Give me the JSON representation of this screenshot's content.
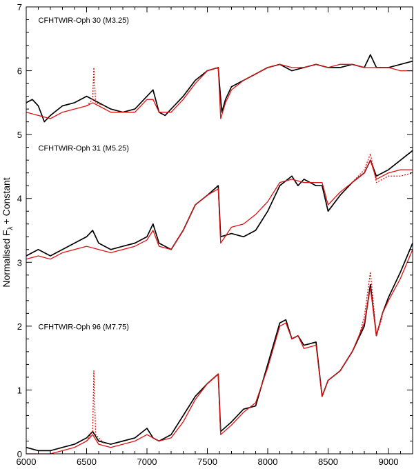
{
  "chart_data": {
    "type": "line",
    "title": "",
    "xlabel": "",
    "ylabel": {
      "main": "Normalised F",
      "sub": "λ",
      "suffix": "+ Constant"
    },
    "xlim": [
      6000,
      9200
    ],
    "ylim": [
      0,
      7
    ],
    "xticks": [
      6000,
      6500,
      7000,
      7500,
      8000,
      8500,
      9000
    ],
    "yticks": [
      0,
      1,
      2,
      3,
      4,
      5,
      6,
      7
    ],
    "grid": false,
    "legend": "none",
    "colors": {
      "observed": "#000000",
      "model": "#dd1111",
      "axes": "#000000"
    },
    "annotations": [
      {
        "text": "CFHTWIR-Oph 30 (M3.25)",
        "x": 6100,
        "y": 6.75
      },
      {
        "text": "CFHTWIR-Oph 31 (M5.25)",
        "x": 6100,
        "y": 4.75
      },
      {
        "text": "CFHTWIR-Oph 96 (M7.75)",
        "x": 6100,
        "y": 1.95
      }
    ],
    "series": [
      {
        "kind": "observed",
        "dashed": false,
        "points": [
          [
            6000,
            5.5
          ],
          [
            6050,
            5.55
          ],
          [
            6100,
            5.45
          ],
          [
            6150,
            5.2
          ],
          [
            6200,
            5.3
          ],
          [
            6300,
            5.45
          ],
          [
            6400,
            5.5
          ],
          [
            6500,
            5.6
          ],
          [
            6550,
            5.55
          ],
          [
            6600,
            5.5
          ],
          [
            6700,
            5.4
          ],
          [
            6800,
            5.35
          ],
          [
            6900,
            5.4
          ],
          [
            7000,
            5.6
          ],
          [
            7050,
            5.7
          ],
          [
            7100,
            5.35
          ],
          [
            7150,
            5.3
          ],
          [
            7200,
            5.4
          ],
          [
            7300,
            5.6
          ],
          [
            7400,
            5.85
          ],
          [
            7500,
            6.0
          ],
          [
            7590,
            6.05
          ],
          [
            7600,
            5.8
          ],
          [
            7620,
            5.35
          ],
          [
            7650,
            5.55
          ],
          [
            7700,
            5.75
          ],
          [
            7800,
            5.85
          ],
          [
            7900,
            5.95
          ],
          [
            8000,
            6.05
          ],
          [
            8100,
            6.1
          ],
          [
            8200,
            6.0
          ],
          [
            8300,
            6.05
          ],
          [
            8400,
            6.1
          ],
          [
            8500,
            6.05
          ],
          [
            8600,
            6.05
          ],
          [
            8700,
            6.1
          ],
          [
            8800,
            6.05
          ],
          [
            8850,
            6.25
          ],
          [
            8900,
            6.05
          ],
          [
            9000,
            6.05
          ],
          [
            9100,
            6.1
          ],
          [
            9200,
            6.15
          ]
        ]
      },
      {
        "kind": "model",
        "dashed": false,
        "points": [
          [
            6000,
            5.35
          ],
          [
            6100,
            5.3
          ],
          [
            6200,
            5.25
          ],
          [
            6300,
            5.35
          ],
          [
            6400,
            5.4
          ],
          [
            6500,
            5.45
          ],
          [
            6550,
            5.5
          ],
          [
            6600,
            5.45
          ],
          [
            6700,
            5.35
          ],
          [
            6800,
            5.35
          ],
          [
            6900,
            5.35
          ],
          [
            7000,
            5.55
          ],
          [
            7050,
            5.55
          ],
          [
            7100,
            5.35
          ],
          [
            7200,
            5.35
          ],
          [
            7300,
            5.55
          ],
          [
            7400,
            5.8
          ],
          [
            7500,
            6.0
          ],
          [
            7590,
            6.05
          ],
          [
            7610,
            5.25
          ],
          [
            7650,
            5.5
          ],
          [
            7700,
            5.7
          ],
          [
            7800,
            5.85
          ],
          [
            7900,
            5.95
          ],
          [
            8000,
            6.05
          ],
          [
            8100,
            6.1
          ],
          [
            8200,
            6.05
          ],
          [
            8300,
            6.05
          ],
          [
            8400,
            6.1
          ],
          [
            8500,
            6.05
          ],
          [
            8600,
            6.1
          ],
          [
            8700,
            6.1
          ],
          [
            8800,
            6.05
          ],
          [
            8900,
            6.05
          ],
          [
            9000,
            6.05
          ],
          [
            9100,
            6.0
          ],
          [
            9200,
            6.0
          ]
        ]
      },
      {
        "kind": "model",
        "dashed": true,
        "points": [
          [
            6500,
            5.45
          ],
          [
            6550,
            5.55
          ],
          [
            6560,
            6.05
          ],
          [
            6575,
            5.5
          ],
          [
            6650,
            5.45
          ]
        ]
      },
      {
        "kind": "observed",
        "dashed": false,
        "points": [
          [
            6000,
            3.1
          ],
          [
            6100,
            3.2
          ],
          [
            6200,
            3.1
          ],
          [
            6300,
            3.2
          ],
          [
            6400,
            3.3
          ],
          [
            6500,
            3.4
          ],
          [
            6550,
            3.5
          ],
          [
            6600,
            3.3
          ],
          [
            6700,
            3.2
          ],
          [
            6800,
            3.25
          ],
          [
            6900,
            3.3
          ],
          [
            7000,
            3.4
          ],
          [
            7050,
            3.6
          ],
          [
            7100,
            3.3
          ],
          [
            7200,
            3.2
          ],
          [
            7300,
            3.5
          ],
          [
            7400,
            3.9
          ],
          [
            7500,
            4.05
          ],
          [
            7590,
            4.2
          ],
          [
            7610,
            3.4
          ],
          [
            7700,
            3.45
          ],
          [
            7800,
            3.4
          ],
          [
            7900,
            3.5
          ],
          [
            8000,
            3.8
          ],
          [
            8100,
            4.2
          ],
          [
            8200,
            4.35
          ],
          [
            8250,
            4.2
          ],
          [
            8300,
            4.3
          ],
          [
            8400,
            4.2
          ],
          [
            8450,
            4.2
          ],
          [
            8500,
            3.8
          ],
          [
            8600,
            4.05
          ],
          [
            8700,
            4.25
          ],
          [
            8800,
            4.4
          ],
          [
            8850,
            4.6
          ],
          [
            8900,
            4.35
          ],
          [
            9000,
            4.45
          ],
          [
            9100,
            4.6
          ],
          [
            9200,
            4.75
          ]
        ]
      },
      {
        "kind": "model",
        "dashed": false,
        "points": [
          [
            6000,
            3.05
          ],
          [
            6100,
            3.1
          ],
          [
            6200,
            3.05
          ],
          [
            6300,
            3.15
          ],
          [
            6400,
            3.2
          ],
          [
            6500,
            3.25
          ],
          [
            6600,
            3.2
          ],
          [
            6700,
            3.15
          ],
          [
            6800,
            3.2
          ],
          [
            6900,
            3.25
          ],
          [
            7000,
            3.35
          ],
          [
            7050,
            3.5
          ],
          [
            7100,
            3.25
          ],
          [
            7200,
            3.2
          ],
          [
            7300,
            3.5
          ],
          [
            7400,
            3.9
          ],
          [
            7500,
            4.05
          ],
          [
            7590,
            4.15
          ],
          [
            7610,
            3.3
          ],
          [
            7700,
            3.55
          ],
          [
            7800,
            3.6
          ],
          [
            7900,
            3.75
          ],
          [
            8000,
            3.95
          ],
          [
            8100,
            4.25
          ],
          [
            8200,
            4.3
          ],
          [
            8300,
            4.25
          ],
          [
            8400,
            4.25
          ],
          [
            8450,
            4.25
          ],
          [
            8500,
            3.9
          ],
          [
            8600,
            4.1
          ],
          [
            8700,
            4.25
          ],
          [
            8800,
            4.4
          ],
          [
            8850,
            4.6
          ],
          [
            8900,
            4.3
          ],
          [
            9000,
            4.4
          ],
          [
            9100,
            4.45
          ],
          [
            9200,
            4.45
          ]
        ]
      },
      {
        "kind": "model",
        "dashed": true,
        "points": [
          [
            8700,
            4.25
          ],
          [
            8800,
            4.45
          ],
          [
            8850,
            4.7
          ],
          [
            8900,
            4.25
          ],
          [
            9000,
            4.35
          ],
          [
            9100,
            4.35
          ],
          [
            9200,
            4.4
          ]
        ]
      },
      {
        "kind": "observed",
        "dashed": false,
        "points": [
          [
            6000,
            0.1
          ],
          [
            6100,
            0.05
          ],
          [
            6200,
            0.05
          ],
          [
            6300,
            0.1
          ],
          [
            6400,
            0.15
          ],
          [
            6500,
            0.25
          ],
          [
            6550,
            0.35
          ],
          [
            6600,
            0.2
          ],
          [
            6700,
            0.15
          ],
          [
            6800,
            0.2
          ],
          [
            6900,
            0.25
          ],
          [
            7000,
            0.4
          ],
          [
            7050,
            0.25
          ],
          [
            7100,
            0.2
          ],
          [
            7200,
            0.3
          ],
          [
            7300,
            0.6
          ],
          [
            7400,
            0.9
          ],
          [
            7500,
            1.1
          ],
          [
            7590,
            1.25
          ],
          [
            7610,
            0.35
          ],
          [
            7700,
            0.5
          ],
          [
            7800,
            0.7
          ],
          [
            7900,
            0.75
          ],
          [
            8000,
            1.4
          ],
          [
            8100,
            2.05
          ],
          [
            8150,
            2.1
          ],
          [
            8200,
            1.8
          ],
          [
            8250,
            1.85
          ],
          [
            8300,
            1.7
          ],
          [
            8400,
            1.75
          ],
          [
            8450,
            0.9
          ],
          [
            8500,
            1.15
          ],
          [
            8600,
            1.3
          ],
          [
            8700,
            1.6
          ],
          [
            8800,
            2.0
          ],
          [
            8850,
            2.65
          ],
          [
            8900,
            1.85
          ],
          [
            8950,
            2.2
          ],
          [
            9000,
            2.45
          ],
          [
            9100,
            2.85
          ],
          [
            9200,
            3.3
          ]
        ]
      },
      {
        "kind": "model",
        "dashed": false,
        "points": [
          [
            6000,
            0.0
          ],
          [
            6100,
            0.0
          ],
          [
            6200,
            0.0
          ],
          [
            6300,
            0.05
          ],
          [
            6400,
            0.1
          ],
          [
            6500,
            0.2
          ],
          [
            6550,
            0.3
          ],
          [
            6600,
            0.15
          ],
          [
            6700,
            0.1
          ],
          [
            6800,
            0.15
          ],
          [
            6900,
            0.2
          ],
          [
            7000,
            0.3
          ],
          [
            7050,
            0.25
          ],
          [
            7100,
            0.2
          ],
          [
            7200,
            0.25
          ],
          [
            7300,
            0.5
          ],
          [
            7400,
            0.85
          ],
          [
            7500,
            1.1
          ],
          [
            7590,
            1.25
          ],
          [
            7610,
            0.3
          ],
          [
            7700,
            0.45
          ],
          [
            7800,
            0.65
          ],
          [
            7900,
            0.8
          ],
          [
            8000,
            1.35
          ],
          [
            8100,
            2.0
          ],
          [
            8150,
            2.05
          ],
          [
            8200,
            1.8
          ],
          [
            8250,
            1.85
          ],
          [
            8300,
            1.65
          ],
          [
            8400,
            1.7
          ],
          [
            8450,
            0.9
          ],
          [
            8500,
            1.15
          ],
          [
            8600,
            1.3
          ],
          [
            8700,
            1.6
          ],
          [
            8800,
            2.05
          ],
          [
            8850,
            2.6
          ],
          [
            8900,
            1.85
          ],
          [
            8950,
            2.2
          ],
          [
            9000,
            2.4
          ],
          [
            9100,
            2.75
          ],
          [
            9200,
            3.2
          ]
        ]
      },
      {
        "kind": "model",
        "dashed": true,
        "points": [
          [
            6500,
            0.2
          ],
          [
            6550,
            0.35
          ],
          [
            6560,
            1.3
          ],
          [
            6575,
            0.3
          ],
          [
            6650,
            0.15
          ]
        ]
      },
      {
        "kind": "model",
        "dashed": true,
        "points": [
          [
            8750,
            1.8
          ],
          [
            8800,
            2.15
          ],
          [
            8850,
            2.85
          ],
          [
            8900,
            1.85
          ],
          [
            8950,
            2.15
          ]
        ]
      }
    ]
  }
}
